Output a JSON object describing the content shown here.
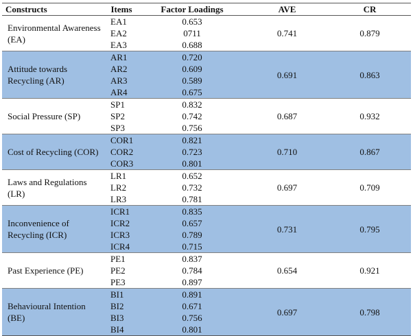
{
  "headers": {
    "construct": "Constructs",
    "items": "Items",
    "loadings": "Factor Loadings",
    "ave": "AVE",
    "cr": "CR"
  },
  "colors": {
    "shaded_row": "#9fbfe3",
    "plain_row": "#ffffff"
  },
  "groups": [
    {
      "construct": "Environmental Awareness (EA)",
      "items": [
        "EA1",
        "EA2",
        "EA3"
      ],
      "loadings": [
        "0.653",
        "0711",
        "0.688"
      ],
      "ave": "0.741",
      "cr": "0.879",
      "shaded": false
    },
    {
      "construct": "Attitude towards Recycling (AR)",
      "items": [
        "AR1",
        "AR2",
        "AR3",
        "AR4"
      ],
      "loadings": [
        "0.720",
        "0.609",
        "0.589",
        "0.675"
      ],
      "ave": "0.691",
      "cr": "0.863",
      "shaded": true
    },
    {
      "construct": "Social Pressure (SP)",
      "items": [
        "SP1",
        "SP2",
        "SP3"
      ],
      "loadings": [
        "0.832",
        "0.742",
        "0.756"
      ],
      "ave": "0.687",
      "cr": "0.932",
      "shaded": false
    },
    {
      "construct": "Cost of Recycling (COR)",
      "items": [
        "COR1",
        "COR2",
        "COR3"
      ],
      "loadings": [
        "0.821",
        "0.723",
        "0.801"
      ],
      "ave": "0.710",
      "cr": "0.867",
      "shaded": true
    },
    {
      "construct": "Laws and Regulations (LR)",
      "items": [
        "LR1",
        "LR2",
        "LR3"
      ],
      "loadings": [
        "0.652",
        "0.732",
        "0.781"
      ],
      "ave": "0.697",
      "cr": "0.709",
      "shaded": false
    },
    {
      "construct": "Inconvenience of Recycling (ICR)",
      "items": [
        "ICR1",
        "ICR2",
        "ICR3",
        "ICR4"
      ],
      "loadings": [
        "0.835",
        "0.657",
        "0.789",
        "0.715"
      ],
      "ave": "0.731",
      "cr": "0.795",
      "shaded": true
    },
    {
      "construct": "Past Experience (PE)",
      "items": [
        "PE1",
        "PE2",
        "PE3"
      ],
      "loadings": [
        "0.837",
        "0.784",
        "0.897"
      ],
      "ave": "0.654",
      "cr": "0.921",
      "shaded": false
    },
    {
      "construct": "Behavioural Intention (BE)",
      "items": [
        "BI1",
        "BI2",
        "BI3",
        "BI4"
      ],
      "loadings": [
        "0.891",
        "0.671",
        "0.756",
        "0.801"
      ],
      "ave": "0.697",
      "cr": "0.798",
      "shaded": true
    }
  ]
}
